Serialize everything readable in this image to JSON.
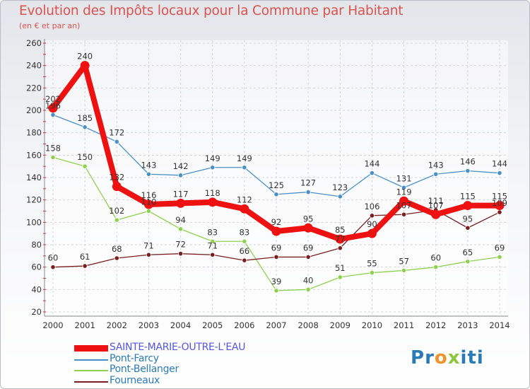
{
  "header": {
    "title": "Evolution des Impôts locaux pour la Commune par Habitant",
    "subtitle": "(en € et par an)"
  },
  "logo": {
    "text": "Proxiti",
    "letters": [
      "P",
      "r",
      "o",
      "x",
      "i",
      "t",
      "i"
    ],
    "colors": [
      "#2a7ab8",
      "#2a7ab8",
      "#f0932b",
      "#8cc63f",
      "#2a7ab8",
      "#2a7ab8",
      "#2a7ab8"
    ]
  },
  "chart_data": {
    "type": "line",
    "x": [
      2000,
      2001,
      2002,
      2003,
      2004,
      2005,
      2006,
      2007,
      2008,
      2009,
      2010,
      2011,
      2012,
      2013,
      2014
    ],
    "ylim": [
      20,
      260
    ],
    "yticks": [
      20,
      40,
      60,
      80,
      100,
      120,
      140,
      160,
      180,
      200,
      220,
      240,
      260
    ],
    "grid": true,
    "legend_position": "bottom-left",
    "series": [
      {
        "name": "Pont-Farcy",
        "color": "#4a90c8",
        "values": [
          196,
          185,
          172,
          143,
          142,
          149,
          149,
          125,
          127,
          123,
          144,
          131,
          143,
          146,
          144
        ],
        "labels": [
          "196",
          "185",
          "172",
          "143",
          "142",
          "149",
          "149",
          "125",
          "127",
          "123",
          "144",
          "131",
          "143",
          "146",
          "144"
        ]
      },
      {
        "name": "Pont-Bellanger",
        "color": "#8fd14f",
        "values": [
          158,
          150,
          102,
          110,
          94,
          83,
          83,
          39,
          40,
          51,
          55,
          57,
          60,
          65,
          69
        ],
        "labels": [
          "158",
          "150",
          "102",
          "110",
          "94",
          "83",
          "83",
          "39",
          "40",
          "51",
          "55",
          "57",
          "60",
          "65",
          "69"
        ]
      },
      {
        "name": "Fourneaux",
        "color": "#7a1f1f",
        "values": [
          60,
          61,
          68,
          71,
          72,
          71,
          66,
          69,
          69,
          77,
          106,
          107,
          111,
          95,
          109
        ],
        "labels": [
          "60",
          "61",
          "68",
          "71",
          "72",
          "71",
          "66",
          "69",
          "69",
          "77",
          "106",
          "107",
          "111",
          "95",
          "109"
        ]
      },
      {
        "name": "SAINTE-MARIE-OUTRE-L'EAU",
        "color": "#ee1111",
        "values": [
          202,
          240,
          132,
          116,
          117,
          118,
          112,
          92,
          95,
          85,
          90,
          119,
          107,
          115,
          115
        ],
        "labels": [
          "202",
          "240",
          "132",
          "116",
          "117",
          "118",
          "112",
          "92",
          "95",
          "85",
          "90",
          "119",
          "107",
          "115",
          "115"
        ]
      }
    ],
    "legend": [
      "SAINTE-MARIE-OUTRE-L'EAU",
      "Pont-Farcy",
      "Pont-Bellanger",
      "Fourneaux"
    ]
  }
}
